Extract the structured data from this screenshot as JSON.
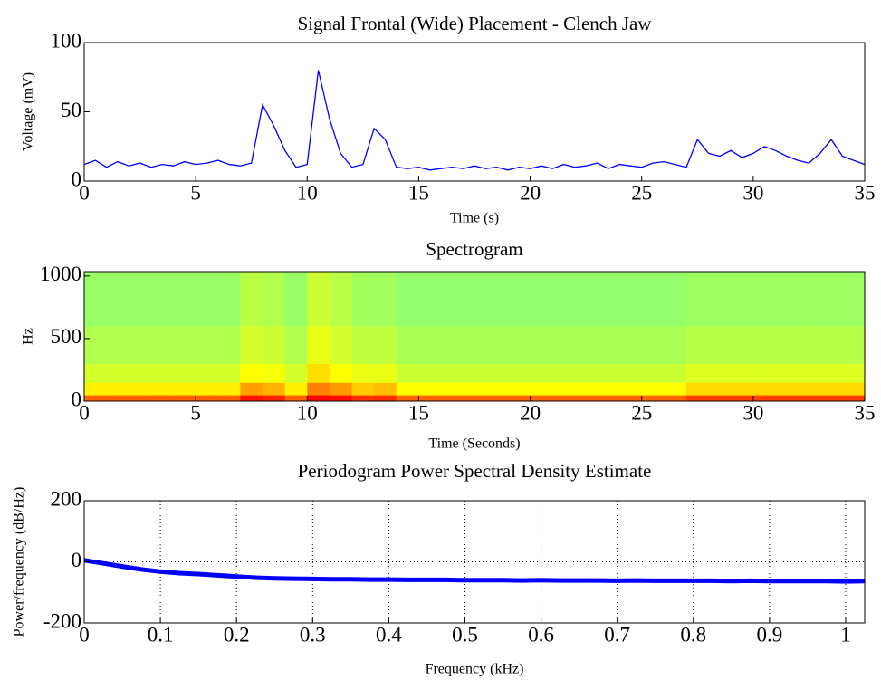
{
  "chart_data": [
    {
      "type": "line",
      "title": "Signal Frontal (Wide) Placement - Clench Jaw",
      "x_label": "Time (s)",
      "y_label": "Voltage (mV)",
      "x": [
        0,
        0.5,
        1,
        1.5,
        2,
        2.5,
        3,
        3.5,
        4,
        4.5,
        5,
        5.5,
        6,
        6.5,
        7,
        7.5,
        8,
        8.5,
        9,
        9.5,
        10,
        10.5,
        11,
        11.5,
        12,
        12.5,
        13,
        13.5,
        14,
        14.5,
        15,
        15.5,
        16,
        16.5,
        17,
        17.5,
        18,
        18.5,
        19,
        19.5,
        20,
        20.5,
        21,
        21.5,
        22,
        22.5,
        23,
        23.5,
        24,
        24.5,
        25,
        25.5,
        26,
        26.5,
        27,
        27.5,
        28,
        28.5,
        29,
        29.5,
        30,
        30.5,
        31,
        31.5,
        32,
        32.5,
        33,
        33.5,
        34,
        34.5,
        35
      ],
      "series": [
        {
          "name": "Voltage",
          "color": "#0000ff",
          "values": [
            12,
            15,
            10,
            14,
            11,
            13,
            10,
            12,
            11,
            14,
            12,
            13,
            15,
            12,
            11,
            13,
            55,
            40,
            22,
            10,
            12,
            80,
            45,
            20,
            10,
            12,
            38,
            30,
            10,
            9,
            10,
            8,
            9,
            10,
            9,
            11,
            9,
            10,
            8,
            10,
            9,
            11,
            9,
            12,
            10,
            11,
            13,
            9,
            12,
            11,
            10,
            13,
            14,
            12,
            10,
            30,
            20,
            18,
            22,
            17,
            20,
            25,
            22,
            18,
            15,
            13,
            20,
            30,
            18,
            15,
            12
          ]
        }
      ],
      "xlim": [
        0,
        35
      ],
      "xticks": [
        0,
        5,
        10,
        15,
        20,
        25,
        30,
        35
      ],
      "ylim": [
        0,
        100
      ],
      "yticks": [
        0,
        50,
        100
      ],
      "grid": false
    },
    {
      "type": "heatmap",
      "title": "Spectrogram",
      "x_label": "Time (Seconds)",
      "y_label": "Hz",
      "x_bins": [
        0,
        1,
        2,
        3,
        4,
        5,
        6,
        7,
        8,
        9,
        10,
        11,
        12,
        13,
        14,
        15,
        16,
        17,
        18,
        19,
        20,
        21,
        22,
        23,
        24,
        25,
        26,
        27,
        28,
        29,
        30,
        31,
        32,
        33,
        34,
        35
      ],
      "y_bins": [
        0,
        50,
        150,
        300,
        600,
        1035
      ],
      "values": [
        [
          0.85,
          0.85,
          0.85,
          0.85,
          0.85,
          0.85,
          0.85,
          0.97,
          0.95,
          0.85,
          1,
          0.98,
          0.92,
          0.93,
          0.84,
          0.84,
          0.84,
          0.84,
          0.84,
          0.84,
          0.84,
          0.84,
          0.84,
          0.84,
          0.84,
          0.84,
          0.84,
          0.9,
          0.9,
          0.9,
          0.9,
          0.9,
          0.9,
          0.9,
          0.9
        ],
        [
          0.62,
          0.62,
          0.62,
          0.62,
          0.62,
          0.62,
          0.62,
          0.75,
          0.72,
          0.62,
          0.8,
          0.76,
          0.68,
          0.7,
          0.6,
          0.6,
          0.6,
          0.6,
          0.6,
          0.6,
          0.6,
          0.6,
          0.6,
          0.6,
          0.6,
          0.6,
          0.6,
          0.66,
          0.66,
          0.66,
          0.66,
          0.66,
          0.66,
          0.66,
          0.66
        ],
        [
          0.5,
          0.5,
          0.5,
          0.5,
          0.5,
          0.5,
          0.5,
          0.6,
          0.58,
          0.5,
          0.65,
          0.6,
          0.55,
          0.55,
          0.48,
          0.48,
          0.48,
          0.48,
          0.48,
          0.48,
          0.48,
          0.48,
          0.48,
          0.48,
          0.48,
          0.48,
          0.48,
          0.52,
          0.52,
          0.52,
          0.52,
          0.52,
          0.52,
          0.52,
          0.52
        ],
        [
          0.42,
          0.42,
          0.42,
          0.42,
          0.42,
          0.42,
          0.42,
          0.5,
          0.48,
          0.42,
          0.55,
          0.5,
          0.45,
          0.45,
          0.4,
          0.4,
          0.4,
          0.4,
          0.4,
          0.4,
          0.4,
          0.4,
          0.4,
          0.4,
          0.4,
          0.4,
          0.4,
          0.43,
          0.43,
          0.43,
          0.43,
          0.43,
          0.43,
          0.43,
          0.43
        ],
        [
          0.36,
          0.36,
          0.36,
          0.36,
          0.36,
          0.36,
          0.36,
          0.44,
          0.42,
          0.36,
          0.48,
          0.44,
          0.38,
          0.38,
          0.35,
          0.35,
          0.35,
          0.35,
          0.35,
          0.35,
          0.35,
          0.35,
          0.35,
          0.35,
          0.35,
          0.35,
          0.35,
          0.37,
          0.37,
          0.37,
          0.37,
          0.37,
          0.37,
          0.37,
          0.37
        ]
      ],
      "colormap": {
        "stops": [
          0.3,
          0.6,
          1.0
        ],
        "colors": [
          "#80ff80",
          "#ffff00",
          "#ff0000"
        ]
      },
      "xlim": [
        0,
        35
      ],
      "xticks": [
        0,
        5,
        10,
        15,
        20,
        25,
        30,
        35
      ],
      "ylim": [
        0,
        1035
      ],
      "yticks": [
        0,
        500,
        1000
      ],
      "grid": false
    },
    {
      "type": "line",
      "title": "Periodogram Power Spectral Density Estimate",
      "x_label": "Frequency (kHz)",
      "y_label": "Power/frequency (dB/Hz)",
      "x": [
        0,
        0.025,
        0.05,
        0.075,
        0.1,
        0.125,
        0.15,
        0.175,
        0.2,
        0.225,
        0.25,
        0.275,
        0.3,
        0.325,
        0.35,
        0.375,
        0.4,
        0.425,
        0.45,
        0.475,
        0.5,
        0.525,
        0.55,
        0.575,
        0.6,
        0.625,
        0.65,
        0.675,
        0.7,
        0.725,
        0.75,
        0.775,
        0.8,
        0.825,
        0.85,
        0.875,
        0.9,
        0.925,
        0.95,
        0.975,
        1.0,
        1.025
      ],
      "series": [
        {
          "name": "PSD",
          "color": "#0000ff",
          "values": [
            5,
            -5,
            -15,
            -25,
            -32,
            -37,
            -40,
            -44,
            -48,
            -52,
            -54,
            -55,
            -56,
            -57,
            -57,
            -58,
            -58,
            -59,
            -59,
            -59,
            -60,
            -60,
            -60,
            -61,
            -60,
            -61,
            -61,
            -61,
            -62,
            -61,
            -62,
            -62,
            -62,
            -62,
            -63,
            -62,
            -63,
            -63,
            -63,
            -63,
            -64,
            -63
          ]
        }
      ],
      "xlim": [
        0,
        1.025
      ],
      "xticks": [
        0,
        0.1,
        0.2,
        0.3,
        0.4,
        0.5,
        0.6,
        0.7,
        0.8,
        0.9,
        1
      ],
      "ylim": [
        -200,
        200
      ],
      "yticks": [
        -200,
        0,
        200
      ],
      "grid": true
    }
  ]
}
